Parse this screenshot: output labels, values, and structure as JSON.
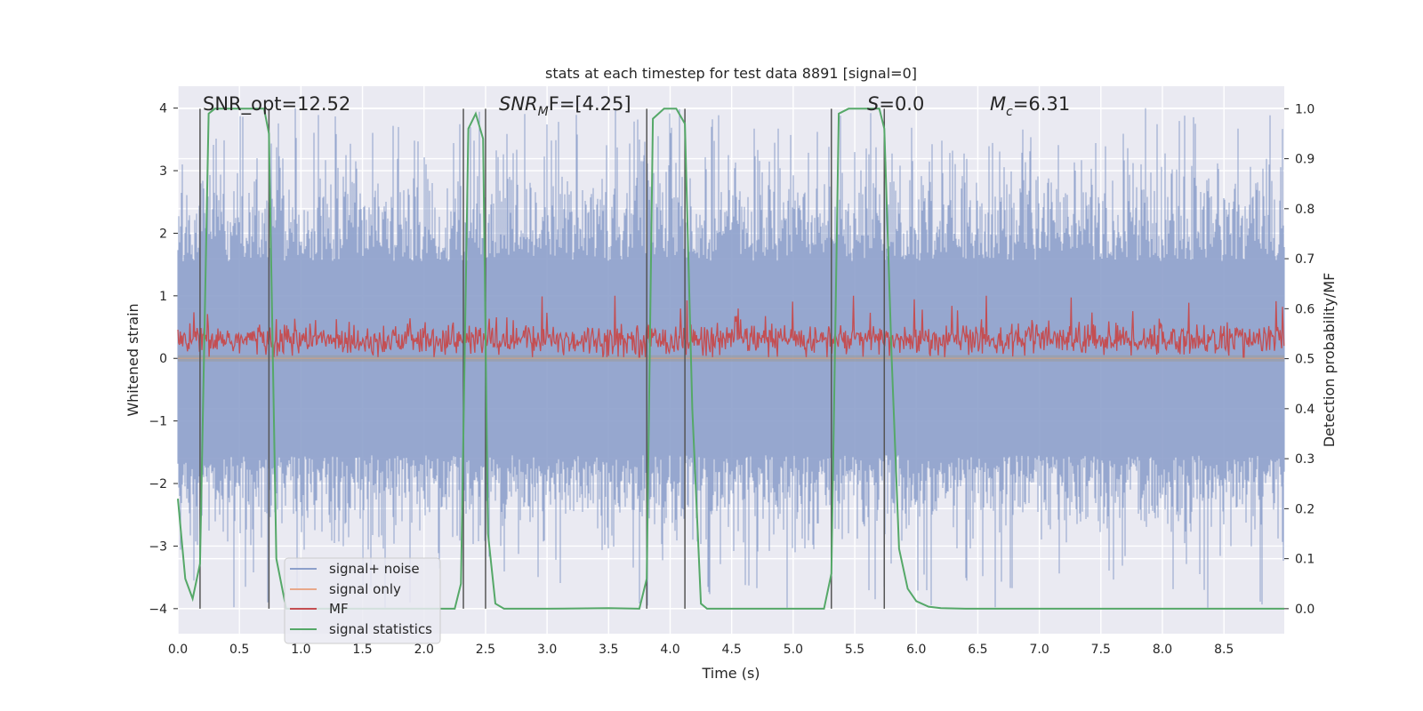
{
  "chart_data": {
    "type": "line",
    "title": "stats at each timestep for test data 8891 [signal=0]",
    "xlabel": "Time (s)",
    "ylabel": "Whitened strain",
    "y2label": "Detection probability/MF",
    "xlim": [
      0.0,
      8.99
    ],
    "ylim": [
      -4.4,
      4.35
    ],
    "y2lim": [
      -0.05,
      1.045
    ],
    "xticks": [
      0.0,
      0.5,
      1.0,
      1.5,
      2.0,
      2.5,
      3.0,
      3.5,
      4.0,
      4.5,
      5.0,
      5.5,
      6.0,
      6.5,
      7.0,
      7.5,
      8.0,
      8.5
    ],
    "xtick_labels": [
      "0.0",
      "0.5",
      "1.0",
      "1.5",
      "2.0",
      "2.5",
      "3.0",
      "3.5",
      "4.0",
      "4.5",
      "5.0",
      "5.5",
      "6.0",
      "6.5",
      "7.0",
      "7.5",
      "8.0",
      "8.5"
    ],
    "yticks": [
      4,
      3,
      2,
      1,
      0,
      -1,
      -2,
      -3,
      -4
    ],
    "ytick_labels": [
      "4",
      "3",
      "2",
      "1",
      "0",
      "−1",
      "−2",
      "−3",
      "−4"
    ],
    "y2ticks": [
      1.0,
      0.9,
      0.8,
      0.7,
      0.6,
      0.5,
      0.4,
      0.3,
      0.2,
      0.1,
      0.0
    ],
    "y2tick_labels": [
      "1.0",
      "0.9",
      "0.8",
      "0.7",
      "0.6",
      "0.5",
      "0.4",
      "0.3",
      "0.2",
      "0.1",
      "0.0"
    ],
    "grid": true,
    "background": "#eaeaf2",
    "annotations": {
      "snr_opt": "SNR_opt=12.52",
      "snr_mf_main": "SNR",
      "snr_mf_sub": "M",
      "snr_mf_rest": "F=[4.25]",
      "s_main": "S",
      "s_rest": "=0.0",
      "mc_main": "M",
      "mc_sub": "c",
      "mc_rest": "=6.31"
    },
    "vertical_lines_s": [
      0.18,
      0.74,
      2.32,
      2.5,
      3.81,
      4.12,
      5.31,
      5.74
    ],
    "series": [
      {
        "name": "signal+ noise",
        "color": "#8da0cb",
        "axis": "y",
        "description": "whitened noise, amplitude envelope about -2.5 to +3 with spikes to 4"
      },
      {
        "name": "signal only",
        "color": "#e8a88a",
        "axis": "y",
        "x": [
          0.0,
          8.99
        ],
        "y": [
          0.0,
          0.0
        ]
      },
      {
        "name": "MF",
        "color": "#c44e52",
        "axis": "y",
        "description": "matched filter output around 0.3 with fluctuations between 0 and 1"
      },
      {
        "name": "signal statistics",
        "color": "#55a868",
        "axis": "y2",
        "x": [
          0.0,
          0.06,
          0.12,
          0.18,
          0.25,
          0.3,
          0.7,
          0.74,
          0.8,
          0.88,
          1.0,
          1.5,
          2.0,
          2.25,
          2.3,
          2.36,
          2.42,
          2.48,
          2.52,
          2.58,
          2.65,
          2.75,
          3.0,
          3.5,
          3.75,
          3.81,
          3.86,
          3.95,
          4.05,
          4.12,
          4.18,
          4.25,
          4.3,
          4.5,
          5.0,
          5.25,
          5.31,
          5.37,
          5.45,
          5.6,
          5.7,
          5.74,
          5.8,
          5.86,
          5.93,
          6.0,
          6.1,
          6.2,
          6.4,
          7.0,
          8.0,
          8.99
        ],
        "y": [
          0.22,
          0.06,
          0.02,
          0.09,
          0.99,
          1.0,
          1.0,
          0.95,
          0.1,
          0.0,
          0.0,
          0.0,
          0.0,
          0.0,
          0.05,
          0.96,
          0.99,
          0.94,
          0.15,
          0.01,
          0.0,
          0.0,
          0.0,
          0.001,
          0.0,
          0.06,
          0.98,
          1.0,
          1.0,
          0.97,
          0.4,
          0.01,
          0.0,
          0.0,
          0.0,
          0.0,
          0.07,
          0.99,
          1.0,
          1.0,
          1.0,
          0.96,
          0.5,
          0.12,
          0.04,
          0.015,
          0.004,
          0.001,
          0.0,
          0.0,
          0.0,
          0.0
        ]
      }
    ],
    "legend_location": "lower-left"
  }
}
